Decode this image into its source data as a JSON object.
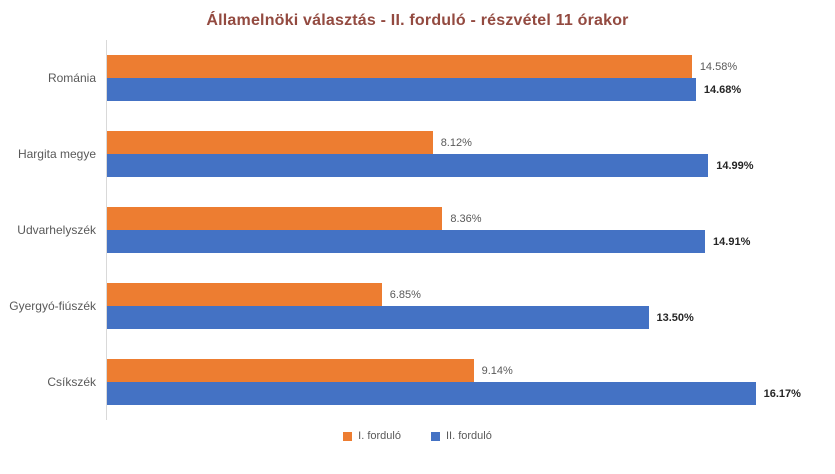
{
  "chart_data": {
    "type": "bar",
    "orientation": "horizontal",
    "title": "Államelnöki választás - II. forduló - részvétel 11 órakor",
    "categories": [
      "Románia",
      "Hargita megye",
      "Udvarhelyszék",
      "Gyergyó-fiúszék",
      "Csíkszék"
    ],
    "series": [
      {
        "name": "I. forduló",
        "color": "#ED7D31",
        "values": [
          14.58,
          8.12,
          8.36,
          6.85,
          9.14
        ],
        "labels": [
          "14.58%",
          "8.12%",
          "8.36%",
          "6.85%",
          "9.14%"
        ]
      },
      {
        "name": "II. forduló",
        "color": "#4472C4",
        "values": [
          14.68,
          14.99,
          14.91,
          13.5,
          16.17
        ],
        "labels": [
          "14.68%",
          "14.99%",
          "14.91%",
          "13.50%",
          "16.17%"
        ]
      }
    ],
    "xlim": [
      0,
      18
    ],
    "grid": false,
    "data_labels": true,
    "legend_position": "bottom"
  },
  "colors": {
    "title": "#934A40",
    "axis_line": "#D9D9D9",
    "label_gray": "#595959",
    "label_dark": "#262626"
  }
}
